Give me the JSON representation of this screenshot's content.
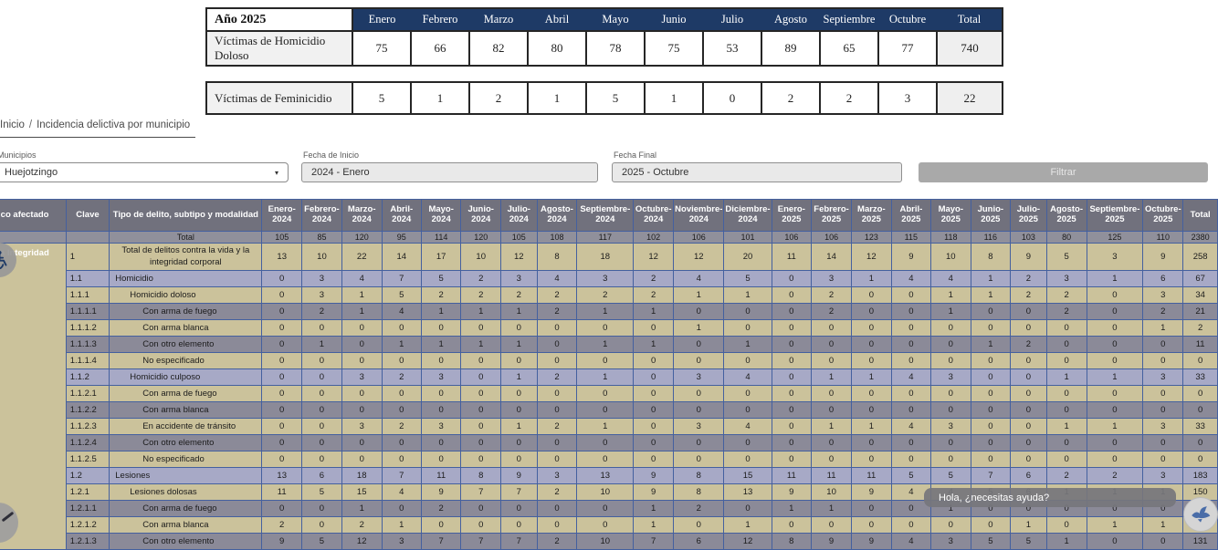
{
  "summary_table": {
    "year_label": "Año 2025",
    "columns": [
      "Enero",
      "Febrero",
      "Marzo",
      "Abril",
      "Mayo",
      "Junio",
      "Julio",
      "Agosto",
      "Septiembre",
      "Octubre",
      "Total"
    ],
    "rows": [
      {
        "label": "Víctimas de Homicidio Doloso",
        "values": [
          75,
          66,
          82,
          80,
          78,
          75,
          53,
          89,
          65,
          77,
          740
        ]
      },
      {
        "label": "Víctimas de Feminicidio",
        "values": [
          5,
          1,
          2,
          1,
          5,
          1,
          0,
          2,
          2,
          3,
          22
        ]
      }
    ]
  },
  "breadcrumb": {
    "home": "Inicio",
    "separator": "/",
    "current": "Incidencia delictiva por municipio"
  },
  "filters": {
    "municipios_label": "Municipios",
    "municipio_value": "Huejotzingo",
    "fecha_inicio_label": "Fecha de Inicio",
    "fecha_inicio_value": "2024 - Enero",
    "fecha_final_label": "Fecha Final",
    "fecha_final_value": "2025 - Octubre",
    "filtrar_label": "Filtrar"
  },
  "chat": {
    "bubble_text": "Hola, ¿necesitas ayuda?"
  },
  "crime_table": {
    "headers": {
      "bien": "Bien jurídico afectado",
      "clave": "Clave",
      "tipo": "Tipo de delito, subtipo y modalidad",
      "total": "Total"
    },
    "month_columns": [
      "Enero-2024",
      "Febrero-2024",
      "Marzo-2024",
      "Abril-2024",
      "Mayo-2024",
      "Junio-2024",
      "Julio-2024",
      "Agosto-2024",
      "Septiembre-2024",
      "Octubre-2024",
      "Noviembre-2024",
      "Diciembre-2024",
      "Enero-2025",
      "Febrero-2025",
      "Marzo-2025",
      "Abril-2025",
      "Mayo-2025",
      "Junio-2025",
      "Julio-2025",
      "Agosto-2025",
      "Septiembre-2025",
      "Octubre-2025"
    ],
    "bien_value": "La vida y la Integridad",
    "total_row": {
      "label": "Total",
      "values": [
        105,
        85,
        120,
        95,
        114,
        120,
        105,
        108,
        117,
        102,
        106,
        101,
        106,
        106,
        123,
        115,
        118,
        116,
        103,
        80,
        125,
        110,
        2380
      ]
    },
    "rows": [
      {
        "clave": "1",
        "tipo": "Total de delitos contra la vida y la integridad corporal",
        "level": 0,
        "shade": "tan",
        "values": [
          13,
          10,
          22,
          14,
          17,
          10,
          12,
          8,
          18,
          12,
          12,
          20,
          11,
          14,
          12,
          9,
          10,
          8,
          9,
          5,
          3,
          9,
          258
        ]
      },
      {
        "clave": "1.1",
        "tipo": "Homicidio",
        "level": 1,
        "shade": "blue",
        "values": [
          0,
          3,
          4,
          7,
          5,
          2,
          3,
          4,
          3,
          2,
          4,
          5,
          0,
          3,
          1,
          4,
          4,
          1,
          2,
          3,
          1,
          6,
          67
        ]
      },
      {
        "clave": "1.1.1",
        "tipo": "Homicidio doloso",
        "level": 2,
        "shade": "tan",
        "values": [
          0,
          3,
          1,
          5,
          2,
          2,
          2,
          2,
          2,
          2,
          1,
          1,
          0,
          2,
          0,
          0,
          1,
          1,
          2,
          2,
          0,
          3,
          34
        ]
      },
      {
        "clave": "1.1.1.1",
        "tipo": "Con arma de fuego",
        "level": 3,
        "shade": "gray",
        "values": [
          0,
          2,
          1,
          4,
          1,
          1,
          1,
          2,
          1,
          1,
          0,
          0,
          0,
          2,
          0,
          0,
          1,
          0,
          0,
          2,
          0,
          2,
          21
        ]
      },
      {
        "clave": "1.1.1.2",
        "tipo": "Con arma blanca",
        "level": 3,
        "shade": "tan",
        "values": [
          0,
          0,
          0,
          0,
          0,
          0,
          0,
          0,
          0,
          0,
          1,
          0,
          0,
          0,
          0,
          0,
          0,
          0,
          0,
          0,
          0,
          1,
          2
        ]
      },
      {
        "clave": "1.1.1.3",
        "tipo": "Con otro elemento",
        "level": 3,
        "shade": "gray",
        "values": [
          0,
          1,
          0,
          1,
          1,
          1,
          1,
          0,
          1,
          1,
          0,
          1,
          0,
          0,
          0,
          0,
          0,
          1,
          2,
          0,
          0,
          0,
          11
        ]
      },
      {
        "clave": "1.1.1.4",
        "tipo": "No especificado",
        "level": 3,
        "shade": "tan",
        "values": [
          0,
          0,
          0,
          0,
          0,
          0,
          0,
          0,
          0,
          0,
          0,
          0,
          0,
          0,
          0,
          0,
          0,
          0,
          0,
          0,
          0,
          0,
          0
        ]
      },
      {
        "clave": "1.1.2",
        "tipo": "Homicidio culposo",
        "level": 2,
        "shade": "blue",
        "values": [
          0,
          0,
          3,
          2,
          3,
          0,
          1,
          2,
          1,
          0,
          3,
          4,
          0,
          1,
          1,
          4,
          3,
          0,
          0,
          1,
          1,
          3,
          33
        ]
      },
      {
        "clave": "1.1.2.1",
        "tipo": "Con arma de fuego",
        "level": 3,
        "shade": "tan",
        "values": [
          0,
          0,
          0,
          0,
          0,
          0,
          0,
          0,
          0,
          0,
          0,
          0,
          0,
          0,
          0,
          0,
          0,
          0,
          0,
          0,
          0,
          0,
          0
        ]
      },
      {
        "clave": "1.1.2.2",
        "tipo": "Con arma blanca",
        "level": 3,
        "shade": "gray",
        "values": [
          0,
          0,
          0,
          0,
          0,
          0,
          0,
          0,
          0,
          0,
          0,
          0,
          0,
          0,
          0,
          0,
          0,
          0,
          0,
          0,
          0,
          0,
          0
        ]
      },
      {
        "clave": "1.1.2.3",
        "tipo": "En accidente de tránsito",
        "level": 3,
        "shade": "tan",
        "values": [
          0,
          0,
          3,
          2,
          3,
          0,
          1,
          2,
          1,
          0,
          3,
          4,
          0,
          1,
          1,
          4,
          3,
          0,
          0,
          1,
          1,
          3,
          33
        ]
      },
      {
        "clave": "1.1.2.4",
        "tipo": "Con otro elemento",
        "level": 3,
        "shade": "gray",
        "values": [
          0,
          0,
          0,
          0,
          0,
          0,
          0,
          0,
          0,
          0,
          0,
          0,
          0,
          0,
          0,
          0,
          0,
          0,
          0,
          0,
          0,
          0,
          0
        ]
      },
      {
        "clave": "1.1.2.5",
        "tipo": "No especificado",
        "level": 3,
        "shade": "tan",
        "values": [
          0,
          0,
          0,
          0,
          0,
          0,
          0,
          0,
          0,
          0,
          0,
          0,
          0,
          0,
          0,
          0,
          0,
          0,
          0,
          0,
          0,
          0,
          0
        ]
      },
      {
        "clave": "1.2",
        "tipo": "Lesiones",
        "level": 1,
        "shade": "blue",
        "values": [
          13,
          6,
          18,
          7,
          11,
          8,
          9,
          3,
          13,
          9,
          8,
          15,
          11,
          11,
          11,
          5,
          5,
          7,
          6,
          2,
          2,
          3,
          183
        ]
      },
      {
        "clave": "1.2.1",
        "tipo": "Lesiones dolosas",
        "level": 2,
        "shade": "tan",
        "values": [
          11,
          5,
          15,
          4,
          9,
          7,
          7,
          2,
          10,
          9,
          8,
          13,
          9,
          10,
          9,
          4,
          4,
          5,
          6,
          1,
          1,
          1,
          150
        ]
      },
      {
        "clave": "1.2.1.1",
        "tipo": "Con arma de fuego",
        "level": 3,
        "shade": "gray",
        "values": [
          0,
          0,
          1,
          0,
          2,
          0,
          0,
          0,
          0,
          1,
          2,
          0,
          1,
          1,
          0,
          0,
          1,
          0,
          0,
          0,
          0,
          0,
          9
        ]
      },
      {
        "clave": "1.2.1.2",
        "tipo": "Con arma blanca",
        "level": 3,
        "shade": "tan",
        "values": [
          2,
          0,
          2,
          1,
          0,
          0,
          0,
          0,
          0,
          1,
          0,
          1,
          0,
          0,
          0,
          0,
          0,
          0,
          1,
          0,
          1,
          1,
          10
        ]
      },
      {
        "clave": "1.2.1.3",
        "tipo": "Con otro elemento",
        "level": 3,
        "shade": "gray",
        "values": [
          9,
          5,
          12,
          3,
          7,
          7,
          7,
          2,
          10,
          7,
          6,
          12,
          8,
          9,
          9,
          4,
          3,
          5,
          5,
          1,
          0,
          0,
          131
        ]
      }
    ]
  },
  "colors": {
    "navy_header": "#1e3a66",
    "table_header": "#71717d",
    "row_tan": "#cbc29b",
    "row_blue": "#a7a9c6",
    "row_gray": "#8b8a98",
    "total_row": "#90909b",
    "grid_border": "#44609f"
  }
}
